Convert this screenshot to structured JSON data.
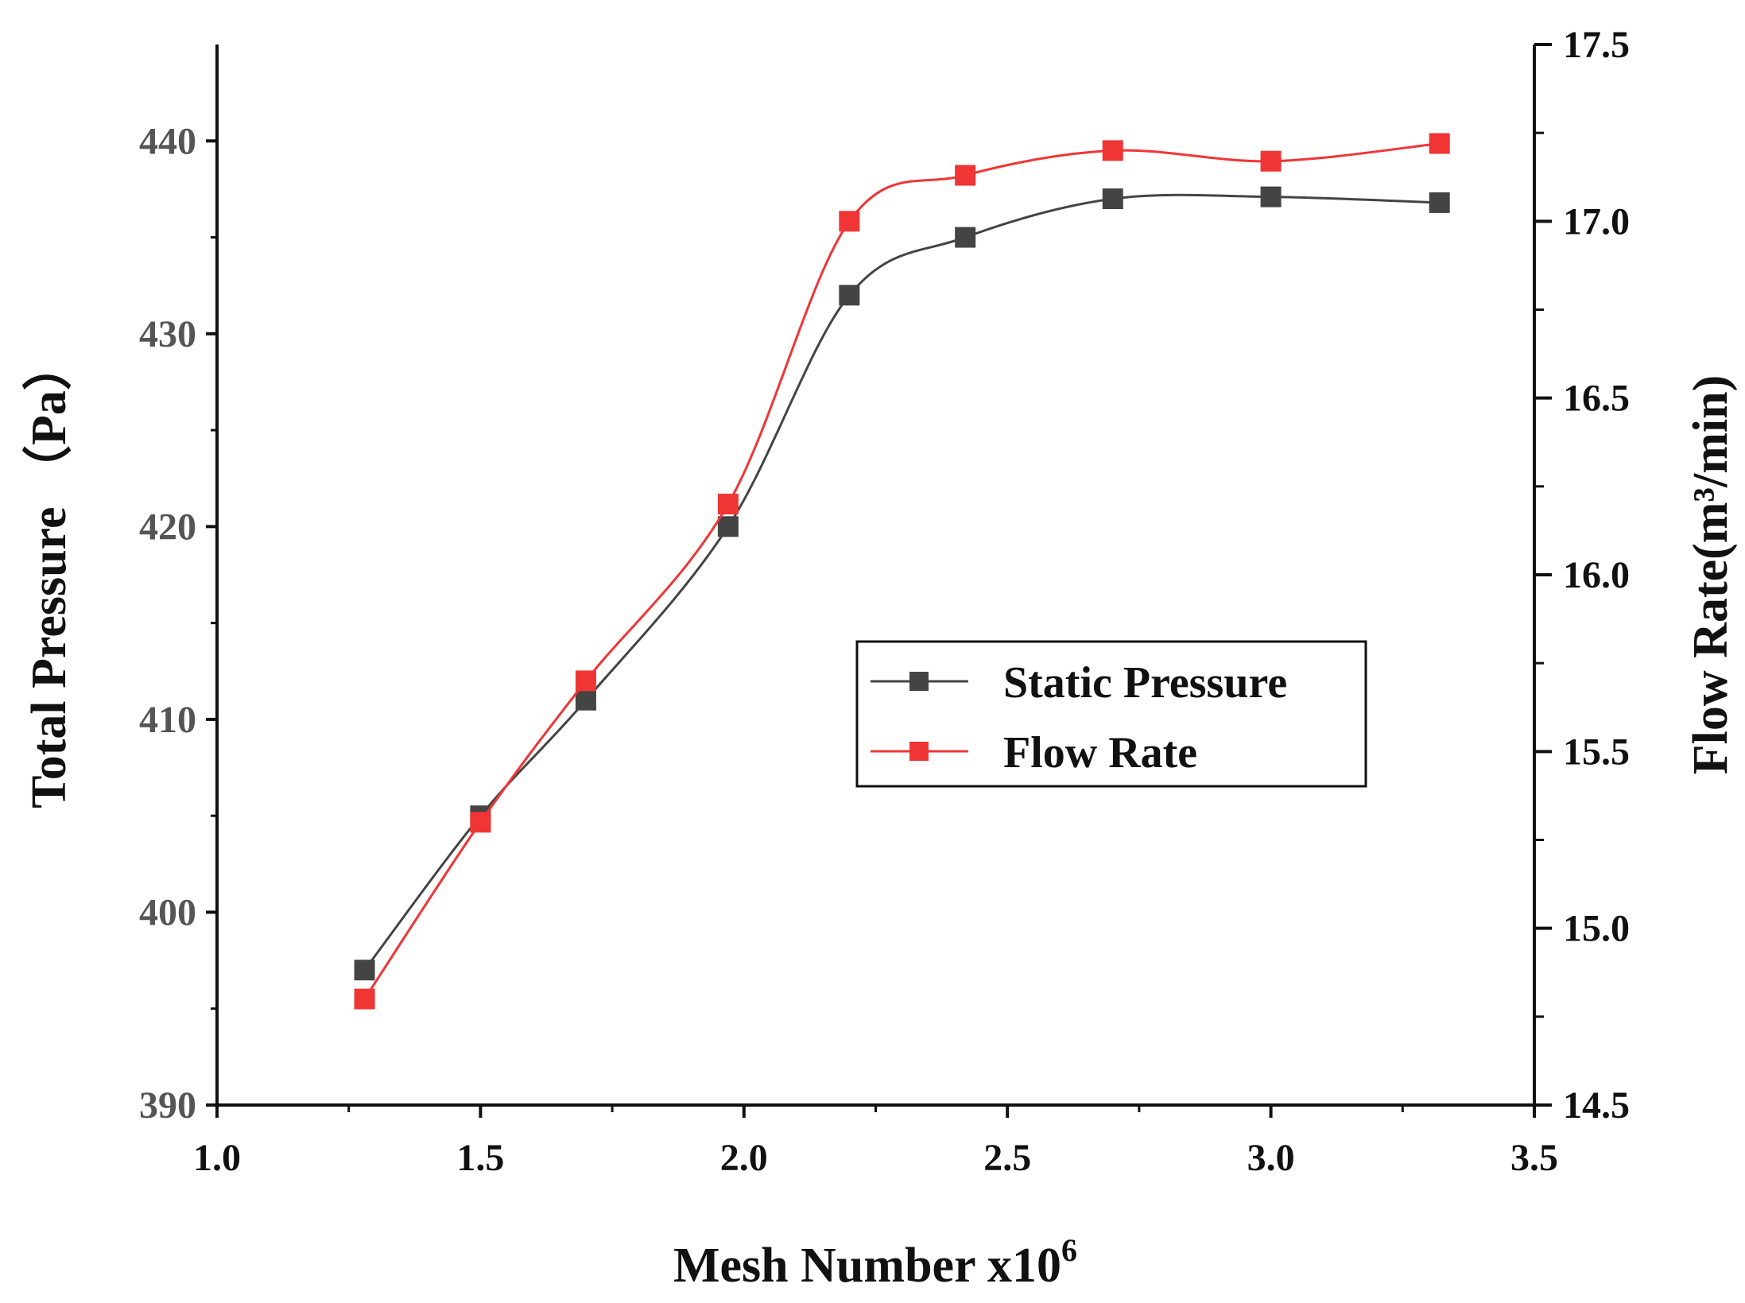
{
  "chart_data": {
    "type": "line",
    "xlabel": "Mesh Number x10",
    "xlabel_superscript": "6",
    "ylabel": "Total Pressure （Pa）",
    "y2label": "Flow Rate(m³/min)",
    "xlim": [
      1.0,
      3.5
    ],
    "ylim": [
      390,
      445
    ],
    "y2lim": [
      14.5,
      17.5
    ],
    "x_ticks": [
      "1.0",
      "1.5",
      "2.0",
      "2.5",
      "3.0",
      "3.5"
    ],
    "y_ticks": [
      "390",
      "400",
      "410",
      "420",
      "430",
      "440"
    ],
    "y2_ticks": [
      "14.5",
      "15.0",
      "15.5",
      "16.0",
      "16.5",
      "17.0",
      "17.5"
    ],
    "x": [
      1.28,
      1.5,
      1.7,
      1.97,
      2.2,
      2.42,
      2.7,
      3.0,
      3.32
    ],
    "series": [
      {
        "name": "Static Pressure",
        "axis": "left",
        "color": "#444444",
        "values": [
          397,
          405,
          411,
          420,
          432,
          435,
          437,
          437.1,
          436.8
        ]
      },
      {
        "name": "Flow Rate",
        "axis": "right",
        "color": "#f03535",
        "values": [
          14.8,
          15.3,
          15.7,
          16.2,
          17.0,
          17.13,
          17.2,
          17.17,
          17.22
        ]
      }
    ],
    "legend_position": "center-right",
    "grid": false
  }
}
